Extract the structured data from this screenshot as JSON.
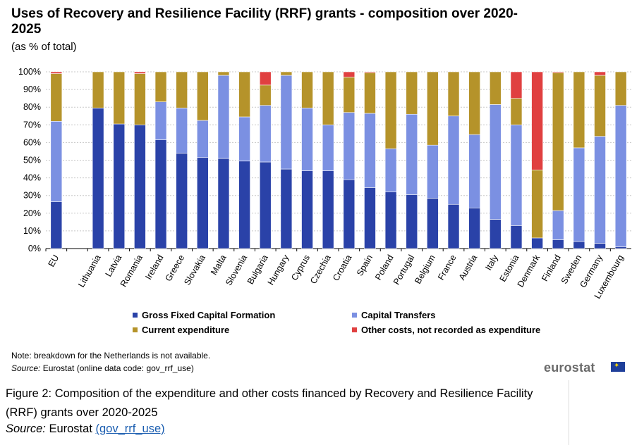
{
  "chart_data": {
    "type": "bar",
    "stacked": true,
    "title": "Uses of Recovery and Resilience Facility (RRF) grants - composition over 2020-2025",
    "subtitle": "(as % of total)",
    "ylim": [
      0,
      100
    ],
    "yticks": [
      "0%",
      "10%",
      "20%",
      "30%",
      "40%",
      "50%",
      "60%",
      "70%",
      "80%",
      "90%",
      "100%"
    ],
    "grid": true,
    "legend_position": "bottom",
    "categories": [
      "EU",
      "",
      "Lithuania",
      "Latvia",
      "Romania",
      "Ireland",
      "Greece",
      "Slovakia",
      "Malta",
      "Slovenia",
      "Bulgaria",
      "Hungary",
      "Cyprus",
      "Czechia",
      "Croatia",
      "Spain",
      "Poland",
      "Portugal",
      "Belgium",
      "France",
      "Austria",
      "Italy",
      "Estonia",
      "Denmark",
      "Finland",
      "Sweden",
      "Germany",
      "Luxembourg"
    ],
    "series": [
      {
        "name": "Gross Fixed Capital Formation",
        "color": "#2a42a8",
        "values": [
          26.5,
          0,
          79.5,
          70.5,
          70,
          61.5,
          54,
          51.5,
          51,
          49.5,
          49,
          45,
          44,
          44,
          39,
          34.5,
          32,
          30.5,
          28.5,
          25,
          23,
          16.5,
          13,
          6,
          5,
          4,
          3,
          1
        ]
      },
      {
        "name": "Capital Transfers",
        "color": "#7b90e2",
        "values": [
          45.5,
          0,
          0,
          0,
          0,
          21.5,
          25.5,
          21,
          47,
          25,
          32,
          53,
          35.5,
          26,
          38,
          42,
          24.5,
          45.5,
          30,
          50,
          41.5,
          65,
          57,
          0,
          16.5,
          53,
          60.5,
          80
        ]
      },
      {
        "name": "Current expenditure",
        "color": "#b5932a",
        "values": [
          27,
          0,
          20.5,
          29.5,
          29,
          17,
          20.5,
          27.5,
          2,
          25.5,
          11.5,
          2,
          20.5,
          30,
          20,
          23,
          43.5,
          24,
          41.5,
          25,
          35.5,
          18.5,
          15,
          38.5,
          78,
          43,
          34.5,
          19
        ]
      },
      {
        "name": "Other costs, not recorded as expenditure",
        "color": "#e04040",
        "values": [
          1,
          0,
          0,
          0,
          1,
          0,
          0,
          0,
          0,
          0,
          7.5,
          0,
          0,
          0,
          3,
          0.5,
          0,
          0,
          0,
          0,
          0,
          0,
          15,
          55.5,
          0.5,
          0,
          2,
          0
        ]
      }
    ]
  },
  "legend": {
    "gfcf": "Gross Fixed Capital Formation",
    "ct": "Capital Transfers",
    "ce": "Current expenditure",
    "oc": "Other costs, not recorded as expenditure",
    "colors": {
      "gfcf": "#2a42a8",
      "ct": "#7b90e2",
      "ce": "#b5932a",
      "oc": "#e04040"
    }
  },
  "note": "Note: breakdown for the Netherlands is not available.",
  "source_label": "Source:",
  "source_text": " Eurostat (online data code: gov_rrf_use)",
  "logo": "eurostat",
  "caption": "Figure 2: Composition of the expenditure and other costs financed by Recovery and Resilience Facility (RRF) grants over 2020-2025",
  "caption_source_label": "Source:",
  "caption_source_text": " Eurostat ",
  "caption_link": "(gov_rrf_use)"
}
